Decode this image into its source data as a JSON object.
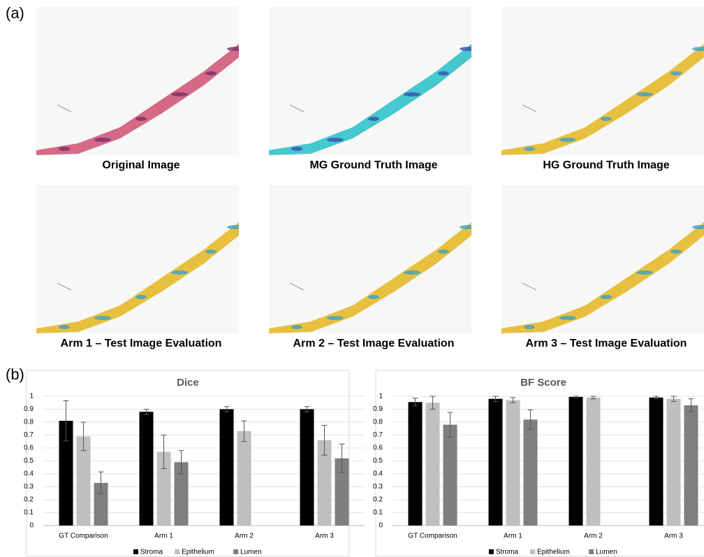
{
  "panel_labels": [
    "(a)",
    "(b)"
  ],
  "images": [
    {
      "caption": "Original Image"
    },
    {
      "caption": "MG Ground Truth Image"
    },
    {
      "caption": "HG Ground Truth Image"
    },
    {
      "caption": "Arm 1 – Test Image Evaluation"
    },
    {
      "caption": "Arm 2 – Test Image Evaluation"
    },
    {
      "caption": "Arm 3 – Test Image Evaluation"
    }
  ],
  "chart_data": [
    {
      "type": "bar",
      "title": "Dice",
      "categories": [
        "GT Comparison",
        "Arm 1",
        "Arm 2",
        "Arm 3"
      ],
      "series": [
        {
          "name": "Stroma",
          "color": "#000000",
          "values": [
            0.81,
            0.88,
            0.9,
            0.9
          ],
          "errors": [
            0.155,
            0.02,
            0.02,
            0.02
          ]
        },
        {
          "name": "Epithelium",
          "color": "#bfbfbf",
          "values": [
            0.69,
            0.57,
            0.73,
            0.66
          ],
          "errors": [
            0.11,
            0.13,
            0.08,
            0.115
          ]
        },
        {
          "name": "Lumen",
          "color": "#7f7f7f",
          "values": [
            0.33,
            0.49,
            null,
            0.52
          ],
          "errors": [
            0.085,
            0.09,
            null,
            0.11
          ]
        }
      ],
      "ylim": [
        0,
        1
      ],
      "yticks": [
        0,
        0.1,
        0.2,
        0.3,
        0.4,
        0.5,
        0.6,
        0.7,
        0.8,
        0.9,
        1
      ],
      "grid": true
    },
    {
      "type": "bar",
      "title": "BF Score",
      "categories": [
        "GT Comparison",
        "Arm 1",
        "Arm 2",
        "Arm 3"
      ],
      "series": [
        {
          "name": "Stroma",
          "color": "#000000",
          "values": [
            0.955,
            0.98,
            0.995,
            0.99
          ],
          "errors": [
            0.03,
            0.02,
            0.005,
            0.01
          ]
        },
        {
          "name": "Epithelium",
          "color": "#bfbfbf",
          "values": [
            0.95,
            0.97,
            0.99,
            0.98
          ],
          "errors": [
            0.05,
            0.02,
            0.01,
            0.02
          ]
        },
        {
          "name": "Lumen",
          "color": "#7f7f7f",
          "values": [
            0.78,
            0.82,
            null,
            0.93
          ],
          "errors": [
            0.095,
            0.075,
            null,
            0.05
          ]
        }
      ],
      "ylim": [
        0,
        1
      ],
      "yticks": [
        0,
        0.1,
        0.2,
        0.3,
        0.4,
        0.5,
        0.6,
        0.7,
        0.8,
        0.9,
        1
      ],
      "grid": true
    }
  ]
}
